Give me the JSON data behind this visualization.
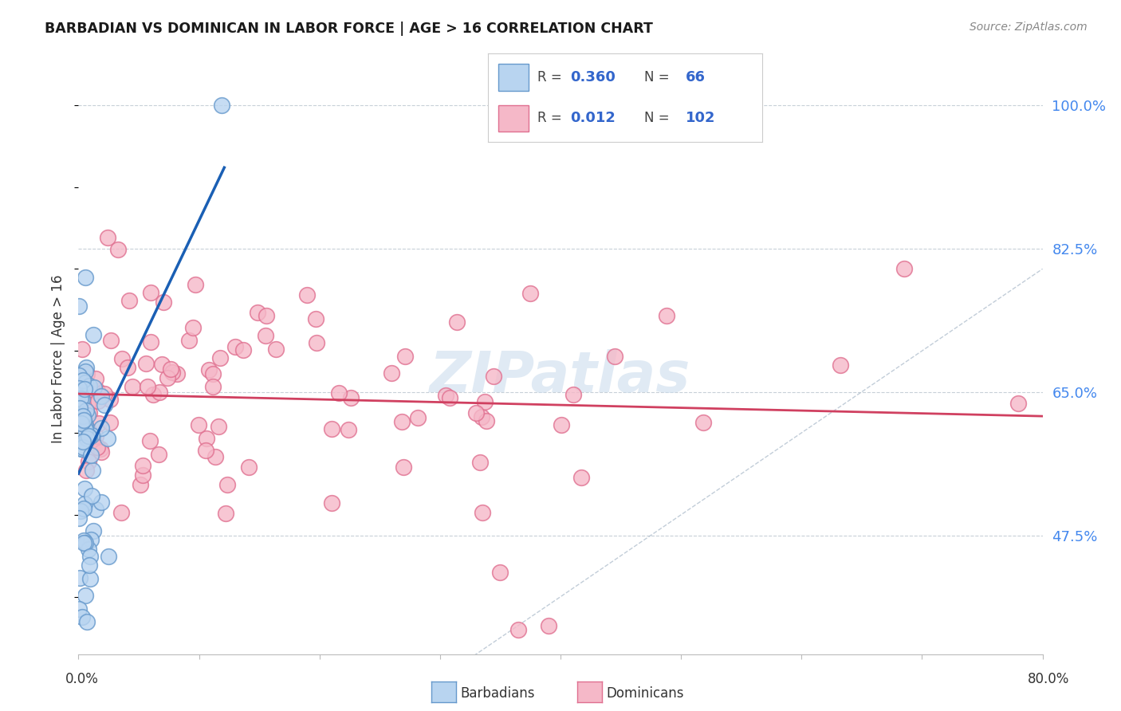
{
  "title": "BARBADIAN VS DOMINICAN IN LABOR FORCE | AGE > 16 CORRELATION CHART",
  "source": "Source: ZipAtlas.com",
  "ylabel": "In Labor Force | Age > 16",
  "ytick_labels": [
    "100.0%",
    "82.5%",
    "65.0%",
    "47.5%"
  ],
  "ytick_values": [
    1.0,
    0.825,
    0.65,
    0.475
  ],
  "xlim": [
    0.0,
    0.8
  ],
  "ylim": [
    0.33,
    1.05
  ],
  "legend_r_barbadian": "0.360",
  "legend_n_barbadian": "66",
  "legend_r_dominican": "0.012",
  "legend_n_dominican": "102",
  "barbadian_face": "#b8d4f0",
  "barbadian_edge": "#6699cc",
  "dominican_face": "#f5b8c8",
  "dominican_edge": "#e07090",
  "trend_barbadian_color": "#1a5fb4",
  "trend_dominican_color": "#d04060",
  "diagonal_color": "#a8b8c8",
  "background_color": "#ffffff",
  "legend_box_color": "#dddddd",
  "legend_text_color": "#3366cc",
  "right_tick_color": "#4488ee",
  "watermark_color": "#ccdded"
}
